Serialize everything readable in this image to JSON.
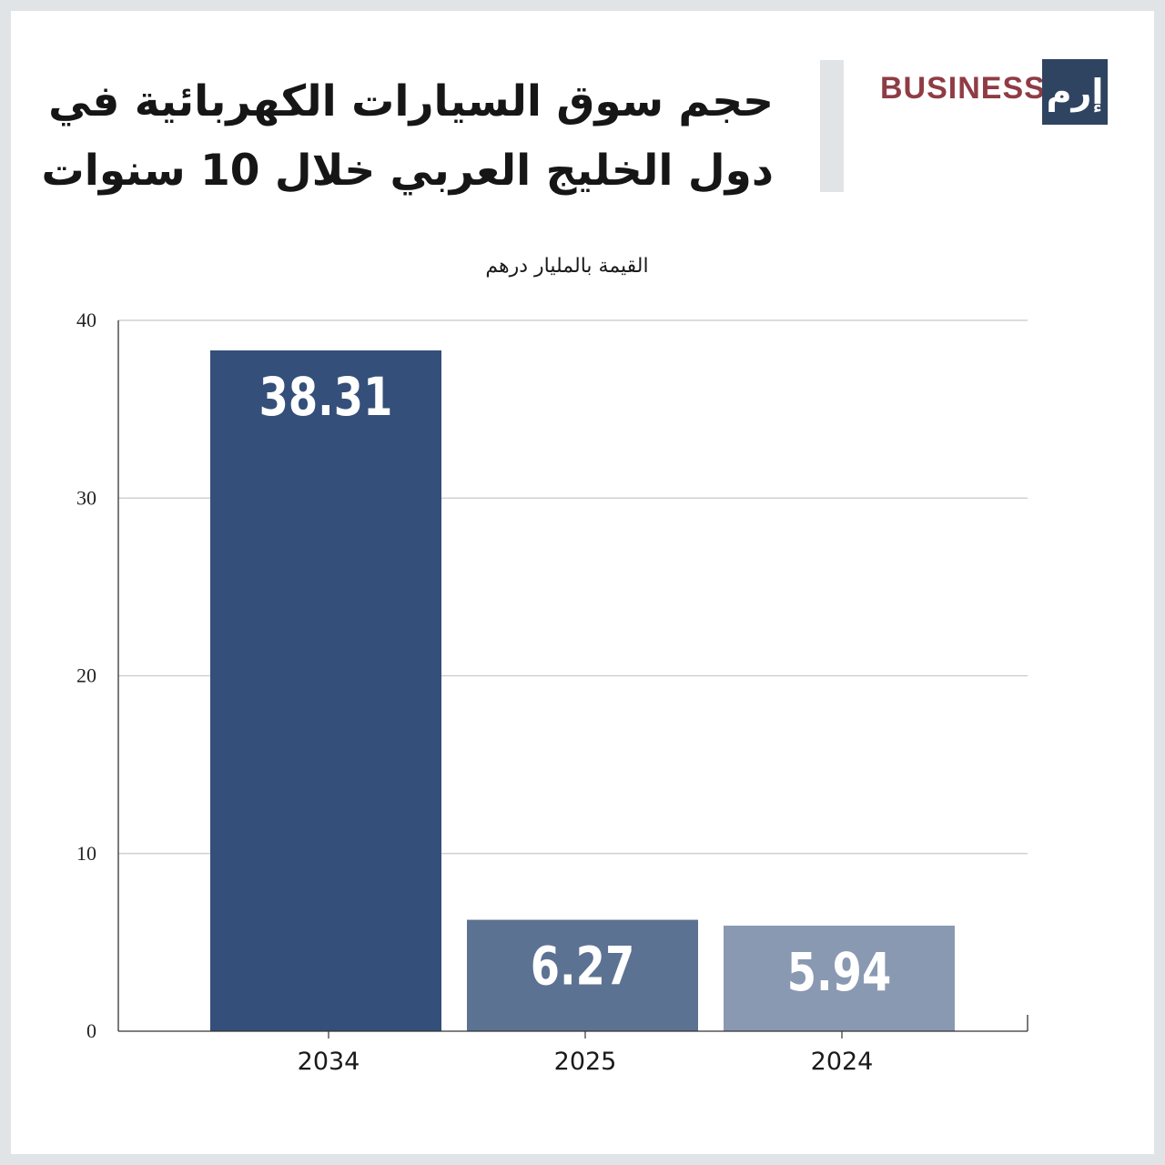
{
  "header": {
    "title_line1": "حجم سوق السيارات الكهربائية في",
    "title_line2": "دول الخليج العربي خلال 10 سنوات",
    "brand_text": "BUSINESS",
    "brand_logo": "إرم"
  },
  "colors": {
    "bar_2034": "#344f79",
    "bar_2025": "#5c7292",
    "bar_2024": "#8a99b2",
    "grid": "#c8c8c8",
    "axis": "#333333"
  },
  "chart_data": {
    "type": "bar",
    "title": "حجم سوق السيارات الكهربائية في دول الخليج العربي خلال 10 سنوات",
    "ylabel": "القيمة بالمليار درهم",
    "xlabel": "",
    "categories": [
      "2034",
      "2025",
      "2024"
    ],
    "values": [
      38.31,
      6.27,
      5.94
    ],
    "value_labels": [
      "38.31",
      "6.27",
      "5.94"
    ],
    "ylim": [
      0,
      40
    ],
    "yticks": [
      0,
      10,
      20,
      30,
      40
    ],
    "ytick_labels": [
      "0",
      "10",
      "20",
      "30",
      "40"
    ],
    "grid": true
  }
}
